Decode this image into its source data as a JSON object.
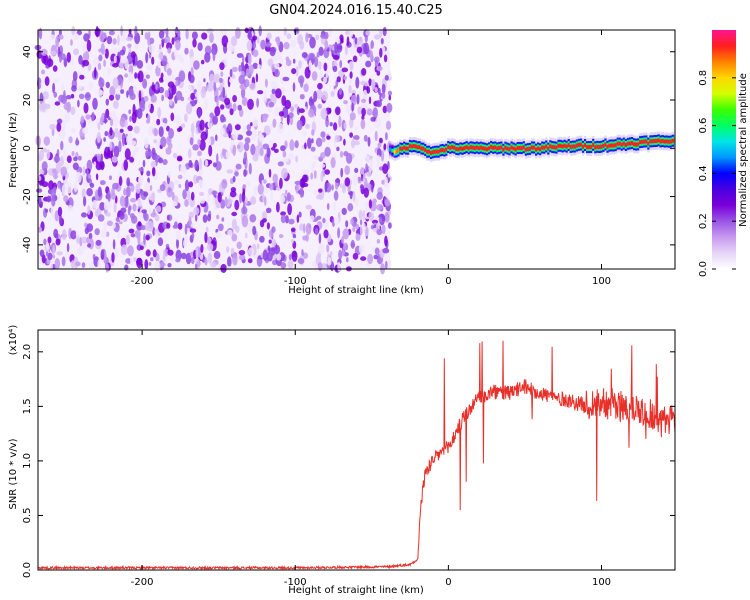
{
  "title": "GN04.2024.016.15.40.C25",
  "colors": {
    "line": "#e8302a",
    "colormap": [
      "#ffffff",
      "#e6d5f7",
      "#c79af0",
      "#9a55e6",
      "#7a00d9",
      "#4b00e0",
      "#0000ff",
      "#0096ff",
      "#00e6e6",
      "#00ff64",
      "#3cff00",
      "#d2ff00",
      "#ffd700",
      "#ff8000",
      "#ff1e1e",
      "#ff1493"
    ]
  },
  "chart_data": [
    {
      "type": "heatmap",
      "xlabel": "Height of straight line (km)",
      "ylabel": "Frequency (Hz)",
      "xlim": [
        -268,
        148
      ],
      "ylim": [
        -50,
        49
      ],
      "xticks": [
        -200,
        -100,
        0,
        100
      ],
      "yticks": [
        -40,
        -20,
        0,
        20,
        40
      ],
      "colorbar": {
        "label": "Normalized spectral amplitude",
        "range": [
          0,
          1
        ],
        "ticks": [
          "0.0",
          "0.2",
          "0.4",
          "0.6",
          "0.8"
        ]
      },
      "noise_region": {
        "x_range": [
          -268,
          -38
        ],
        "amplitude_range": [
          0.05,
          0.2
        ]
      },
      "signal_ridge": [
        {
          "x": -38,
          "freq": 0,
          "amp": 0.45
        },
        {
          "x": -35,
          "freq": -2,
          "amp": 0.8
        },
        {
          "x": -30,
          "freq": 0,
          "amp": 0.95
        },
        {
          "x": -20,
          "freq": 1,
          "amp": 0.95
        },
        {
          "x": -10,
          "freq": -2,
          "amp": 0.95
        },
        {
          "x": 0,
          "freq": 0,
          "amp": 0.95
        },
        {
          "x": 20,
          "freq": 0,
          "amp": 0.95
        },
        {
          "x": 40,
          "freq": 0,
          "amp": 0.95
        },
        {
          "x": 60,
          "freq": 0,
          "amp": 0.95
        },
        {
          "x": 80,
          "freq": 1,
          "amp": 0.9
        },
        {
          "x": 100,
          "freq": 1,
          "amp": 0.9
        },
        {
          "x": 120,
          "freq": 2,
          "amp": 0.95
        },
        {
          "x": 140,
          "freq": 3,
          "amp": 0.95
        },
        {
          "x": 148,
          "freq": 3,
          "amp": 0.95
        }
      ]
    },
    {
      "type": "line",
      "xlabel": "Height of straight line (km)",
      "ylabel": "SNR (10 * v/v)",
      "y_multiplier": "(x10⁴)",
      "xlim": [
        -268,
        148
      ],
      "ylim": [
        0,
        2.2
      ],
      "xticks": [
        -200,
        -100,
        0,
        100
      ],
      "yticks": [
        "0.0",
        "0.5",
        "1.0",
        "1.5",
        "2.0"
      ],
      "series": [
        {
          "x": [
            -268,
            -200,
            -100,
            -40,
            -25,
            -20,
            -18,
            -15,
            -10,
            -5,
            0,
            10,
            20,
            30,
            40,
            50,
            60,
            70,
            80,
            90,
            100,
            110,
            120,
            130,
            140,
            148
          ],
          "y": [
            0.02,
            0.02,
            0.02,
            0.03,
            0.05,
            0.1,
            0.6,
            0.9,
            1.0,
            1.08,
            1.12,
            1.4,
            1.58,
            1.63,
            1.62,
            1.68,
            1.62,
            1.58,
            1.55,
            1.5,
            1.55,
            1.5,
            1.5,
            1.45,
            1.35,
            1.4
          ]
        }
      ]
    }
  ]
}
